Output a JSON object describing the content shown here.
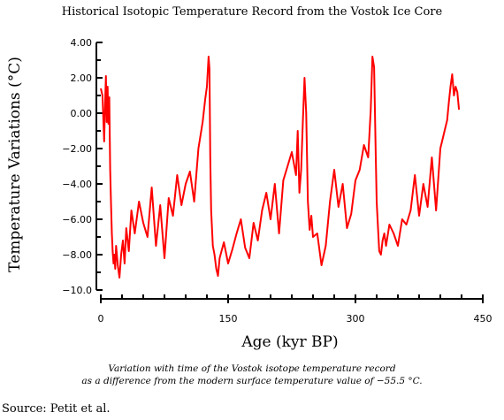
{
  "chart_data": {
    "type": "line",
    "title": "Historical Isotopic Temperature Record from the Vostok Ice Core",
    "xlabel": "Age (kyr BP)",
    "ylabel": "Temperature Variations (°C)",
    "xlim": [
      0,
      450
    ],
    "ylim": [
      -10,
      4
    ],
    "x_ticks": [
      0,
      150,
      300,
      450
    ],
    "y_ticks": [
      4.0,
      2.0,
      0.0,
      -2.0,
      -4.0,
      -6.0,
      -8.0,
      -10.0
    ],
    "x_tick_labels": [
      "0",
      "150",
      "300",
      "450"
    ],
    "y_tick_labels": [
      "4.00",
      "2.00",
      "0.00",
      "−2.00",
      "−4.00",
      "−6.00",
      "−8.00",
      "−10.0"
    ],
    "line_color": "#ff0000",
    "grid": false,
    "series": [
      {
        "x": [
          0,
          2,
          4,
          5,
          6,
          7,
          8,
          9,
          10,
          11,
          12,
          13,
          14,
          15,
          16,
          17,
          18,
          20,
          22,
          24,
          26,
          28,
          30,
          33,
          36,
          40,
          45,
          50,
          55,
          60,
          65,
          70,
          75,
          80,
          85,
          90,
          95,
          100,
          105,
          110,
          115,
          120,
          123,
          125,
          127,
          128,
          129,
          130,
          132,
          134,
          136,
          138,
          140,
          145,
          150,
          155,
          160,
          165,
          170,
          175,
          180,
          185,
          190,
          195,
          200,
          205,
          210,
          215,
          220,
          225,
          230,
          232,
          234,
          236,
          238,
          240,
          242,
          244,
          246,
          248,
          250,
          255,
          260,
          265,
          270,
          275,
          280,
          285,
          290,
          295,
          300,
          305,
          310,
          315,
          318,
          320,
          322,
          324,
          325,
          326,
          328,
          330,
          332,
          334,
          336,
          340,
          345,
          350,
          355,
          360,
          365,
          370,
          375,
          380,
          385,
          390,
          395,
          400,
          405,
          408,
          410,
          412,
          414,
          416,
          418,
          420,
          422
        ],
        "y": [
          1.4,
          1.0,
          -1.6,
          0.5,
          2.1,
          -0.5,
          1.5,
          -0.6,
          0.9,
          -3.2,
          -5.0,
          -6.8,
          -7.8,
          -8.5,
          -8.0,
          -8.8,
          -7.5,
          -8.6,
          -9.3,
          -8.0,
          -7.2,
          -8.5,
          -6.5,
          -7.8,
          -5.5,
          -6.8,
          -5.0,
          -6.2,
          -7.0,
          -4.2,
          -7.5,
          -5.2,
          -8.2,
          -4.8,
          -5.8,
          -3.5,
          -5.2,
          -4.0,
          -3.3,
          -5.0,
          -2.0,
          -0.5,
          0.8,
          1.5,
          3.2,
          2.5,
          -2.5,
          -5.5,
          -7.5,
          -8.0,
          -8.8,
          -9.2,
          -8.2,
          -7.3,
          -8.5,
          -7.7,
          -6.8,
          -6.0,
          -7.6,
          -8.2,
          -6.2,
          -7.2,
          -5.5,
          -4.5,
          -6.0,
          -4.0,
          -6.8,
          -3.8,
          -3.0,
          -2.2,
          -3.5,
          -1.0,
          -4.5,
          -3.2,
          -0.5,
          2.0,
          0.0,
          -5.0,
          -6.6,
          -5.8,
          -7.0,
          -6.8,
          -8.6,
          -7.5,
          -5.0,
          -3.2,
          -5.3,
          -4.0,
          -6.5,
          -5.7,
          -3.8,
          -3.2,
          -1.8,
          -2.5,
          0.2,
          3.2,
          2.6,
          -2.5,
          -5.0,
          -6.0,
          -7.8,
          -8.0,
          -7.2,
          -6.8,
          -7.5,
          -6.3,
          -6.8,
          -7.5,
          -6.0,
          -6.3,
          -5.5,
          -3.5,
          -5.8,
          -4.0,
          -5.3,
          -2.5,
          -5.5,
          -2.0,
          -1.0,
          -0.4,
          0.6,
          1.5,
          2.2,
          1.0,
          1.5,
          1.2,
          0.2
        ]
      }
    ]
  },
  "caption": {
    "line1": "Variation with time of the Vostok isotope temperature record",
    "line2": "as a difference from the modern surface temperature value of −55.5 °C."
  },
  "source_text": "Source: Petit et al."
}
